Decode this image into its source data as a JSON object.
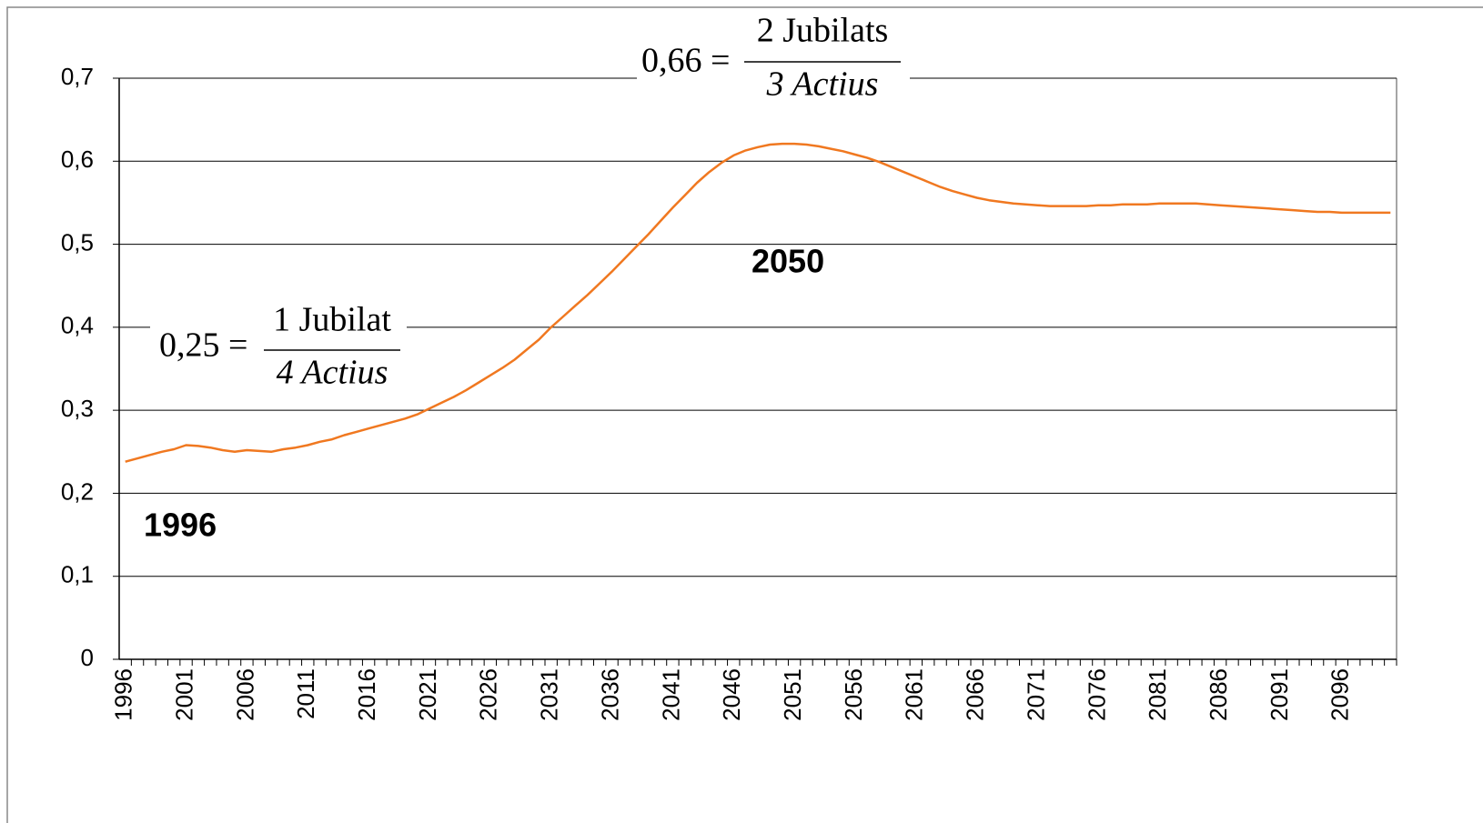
{
  "chart_data": {
    "type": "line",
    "categories": [
      "1996",
      null,
      null,
      null,
      null,
      "2001",
      null,
      null,
      null,
      null,
      "2006",
      null,
      null,
      null,
      null,
      "2011",
      null,
      null,
      null,
      null,
      "2016",
      null,
      null,
      null,
      null,
      "2021",
      null,
      null,
      null,
      null,
      "2026",
      null,
      null,
      null,
      null,
      "2031",
      null,
      null,
      null,
      null,
      "2036",
      null,
      null,
      null,
      null,
      "2041",
      null,
      null,
      null,
      null,
      "2046",
      null,
      null,
      null,
      null,
      "2051",
      null,
      null,
      null,
      null,
      "2056",
      null,
      null,
      null,
      null,
      "2061",
      null,
      null,
      null,
      null,
      "2066",
      null,
      null,
      null,
      null,
      "2071",
      null,
      null,
      null,
      null,
      "2076",
      null,
      null,
      null,
      null,
      "2081",
      null,
      null,
      null,
      null,
      "2086",
      null,
      null,
      null,
      null,
      "2091",
      null,
      null,
      null,
      null,
      "2096",
      null,
      null,
      null,
      null
    ],
    "series": [
      {
        "color": "#f07820",
        "values": [
          0.238,
          0.242,
          0.246,
          0.25,
          0.253,
          0.258,
          0.257,
          0.255,
          0.252,
          0.25,
          0.252,
          0.251,
          0.25,
          0.253,
          0.255,
          0.258,
          0.262,
          0.265,
          0.27,
          0.274,
          0.278,
          0.282,
          0.286,
          0.29,
          0.295,
          0.302,
          0.309,
          0.316,
          0.324,
          0.333,
          0.342,
          0.351,
          0.361,
          0.373,
          0.385,
          0.4,
          0.413,
          0.426,
          0.439,
          0.453,
          0.467,
          0.482,
          0.497,
          0.512,
          0.528,
          0.544,
          0.559,
          0.574,
          0.587,
          0.598,
          0.607,
          0.613,
          0.617,
          0.62,
          0.621,
          0.621,
          0.62,
          0.618,
          0.615,
          0.612,
          0.608,
          0.604,
          0.599,
          0.593,
          0.587,
          0.581,
          0.575,
          0.569,
          0.564,
          0.56,
          0.556,
          0.553,
          0.551,
          0.549,
          0.548,
          0.547,
          0.546,
          0.546,
          0.546,
          0.546,
          0.547,
          0.547,
          0.548,
          0.548,
          0.548,
          0.549,
          0.549,
          0.549,
          0.549,
          0.548,
          0.547,
          0.546,
          0.545,
          0.544,
          0.543,
          0.542,
          0.541,
          0.54,
          0.539,
          0.539,
          0.538,
          0.538,
          0.538,
          0.538,
          0.538
        ]
      }
    ],
    "ylim": [
      0,
      0.7
    ],
    "yticks": [
      0,
      {
        "value": 0.1,
        "label": "0,1"
      },
      {
        "value": 0.2,
        "label": "0,2"
      },
      {
        "value": 0.3,
        "label": "0,3"
      },
      {
        "value": 0.4,
        "label": "0,4"
      },
      {
        "value": 0.5,
        "label": "0,5"
      },
      {
        "value": 0.6,
        "label": "0,6"
      },
      {
        "value": 0.7,
        "label": "0,7"
      }
    ],
    "grid": true,
    "annotations": [
      {
        "lhs": "0,66 =",
        "numerator": "2 Jubilats",
        "denominator": "3 Actius"
      },
      {
        "lhs": "0,25 =",
        "numerator": "1 Jubilat",
        "denominator": "4 Actius"
      },
      {
        "text": "2050"
      },
      {
        "text": "1996"
      }
    ]
  }
}
